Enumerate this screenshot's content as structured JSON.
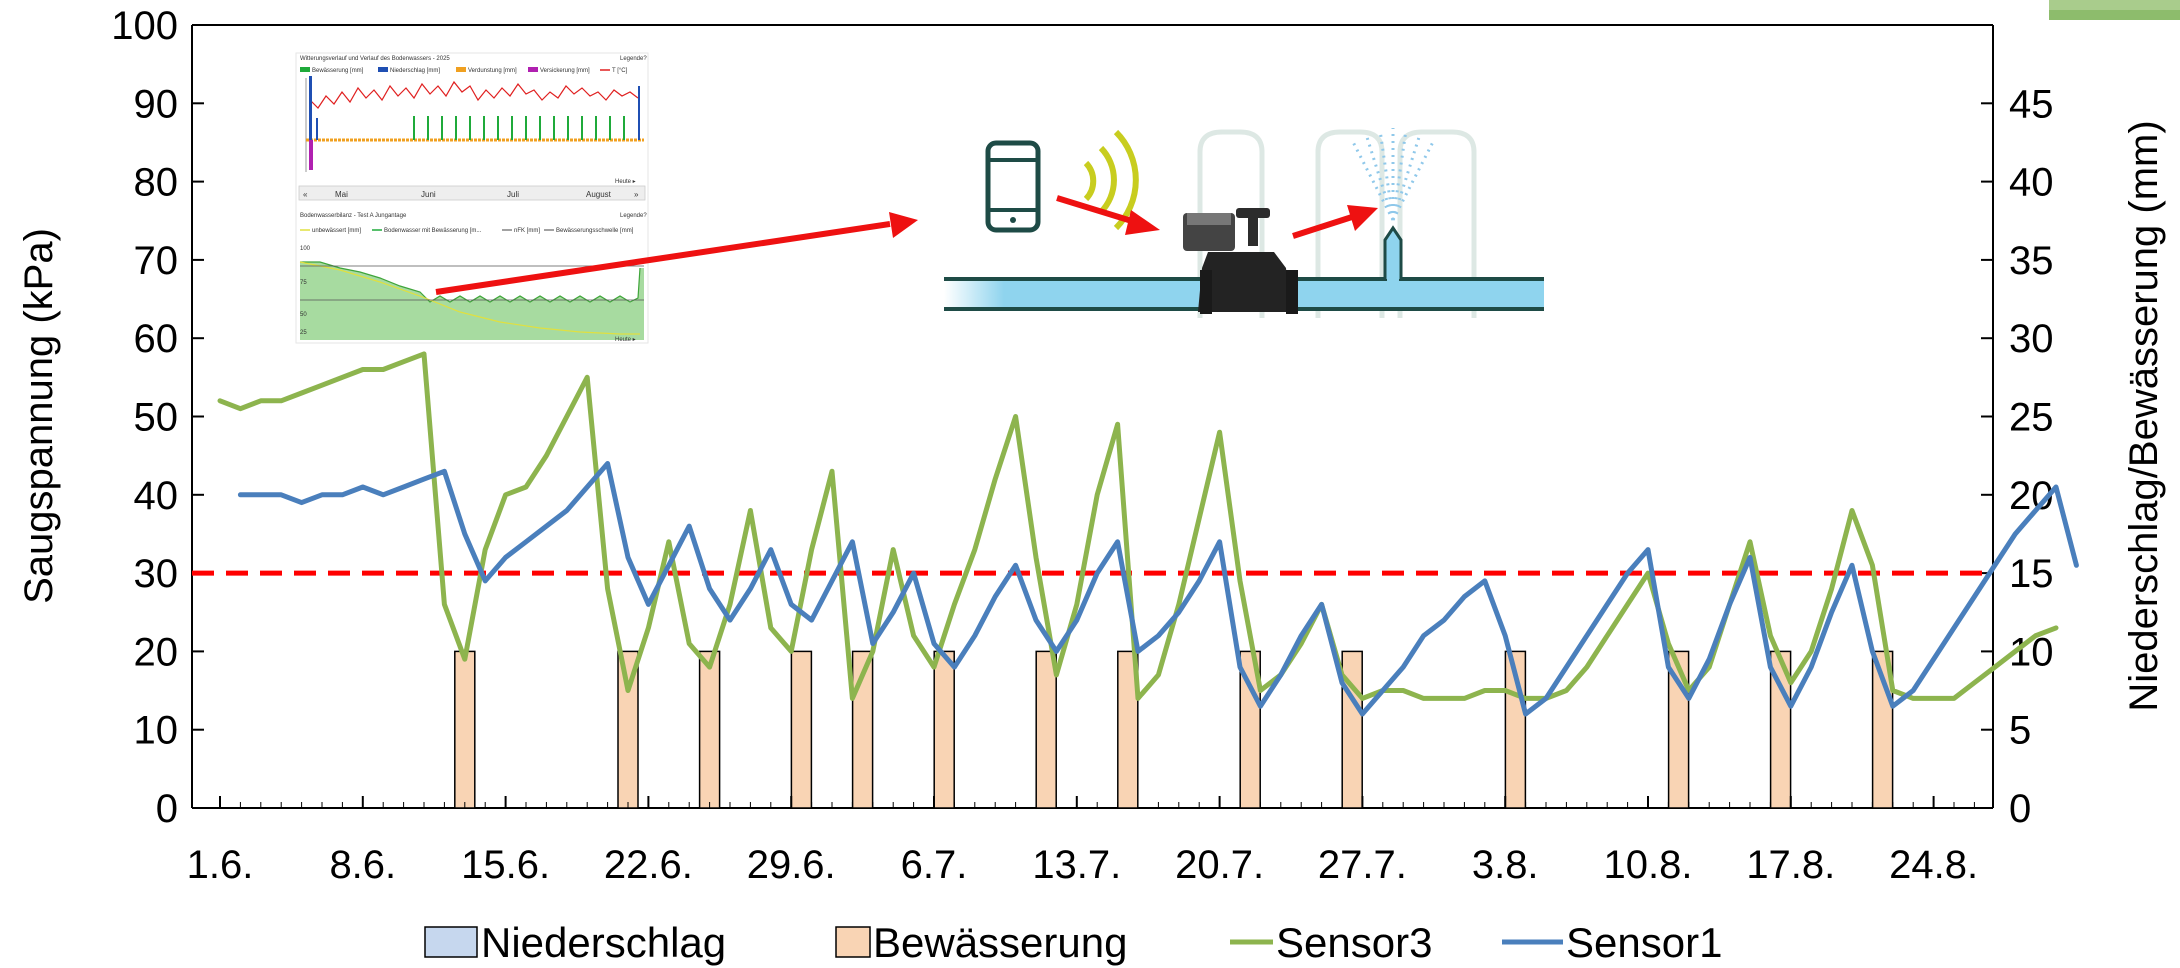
{
  "chart_data": {
    "type": "line",
    "xlabel": "",
    "ylabel": "Saugspannung (kPa)",
    "y2label": "Niederschlag/Bewässerung (mm)",
    "ylim": [
      0,
      100
    ],
    "y2lim": [
      0,
      50
    ],
    "yticks": [
      "0",
      "10",
      "20",
      "30",
      "40",
      "50",
      "60",
      "70",
      "80",
      "90",
      "100"
    ],
    "y2ticks": [
      "0",
      "5",
      "10",
      "15",
      "20",
      "25",
      "30",
      "35",
      "40",
      "45"
    ],
    "xlim": [
      0,
      92
    ],
    "xticks": [
      {
        "day": 0,
        "label": "1.6."
      },
      {
        "day": 7,
        "label": "8.6."
      },
      {
        "day": 14,
        "label": "15.6."
      },
      {
        "day": 21,
        "label": "22.6."
      },
      {
        "day": 28,
        "label": "29.6."
      },
      {
        "day": 35,
        "label": "6.7."
      },
      {
        "day": 42,
        "label": "13.7."
      },
      {
        "day": 49,
        "label": "20.7."
      },
      {
        "day": 56,
        "label": "27.7."
      },
      {
        "day": 63,
        "label": "3.8."
      },
      {
        "day": 70,
        "label": "10.8."
      },
      {
        "day": 77,
        "label": "17.8."
      },
      {
        "day": 84,
        "label": "24.8."
      }
    ],
    "threshold": {
      "value": 30,
      "color": "#ff0000"
    },
    "legend": {
      "position": "bottom",
      "items": [
        {
          "label": "Niederschlag",
          "kind": "box",
          "color": "#c6d7ee"
        },
        {
          "label": "Bewässerung",
          "kind": "box",
          "color": "#f9d4b4"
        },
        {
          "label": "Sensor3",
          "kind": "line",
          "color": "#8db44e"
        },
        {
          "label": "Sensor1",
          "kind": "line",
          "color": "#4a7fbc"
        }
      ]
    },
    "bars": {
      "name": "Bewässerung",
      "color": "#f9d4b4",
      "x": [
        12,
        20,
        24,
        28.5,
        31.5,
        35.5,
        40.5,
        44.5,
        50.5,
        55.5,
        63.5,
        71.5,
        76.5,
        81.5
      ],
      "values": [
        10,
        10,
        10,
        10,
        10,
        10,
        10,
        10,
        10,
        10,
        10,
        10,
        10,
        10
      ]
    },
    "series": [
      {
        "name": "Sensor3",
        "color": "#8db44e",
        "x": [
          0,
          1,
          2,
          3,
          4,
          5,
          6,
          7,
          8,
          9,
          10,
          11,
          12,
          13,
          14,
          15,
          16,
          17,
          18,
          19,
          20,
          21,
          22,
          23,
          24,
          25,
          26,
          27,
          28,
          29,
          30,
          31,
          32,
          33,
          34,
          35,
          36,
          37,
          38,
          39,
          40,
          41,
          42,
          43,
          44,
          45,
          46,
          47,
          48,
          49,
          50,
          51,
          52,
          53,
          54,
          55,
          56,
          57,
          58,
          59,
          60,
          61,
          62,
          63,
          64,
          65,
          66,
          67,
          68,
          69,
          70,
          71,
          72,
          73,
          74,
          75,
          76,
          77,
          78,
          79,
          80,
          81,
          82,
          83,
          84,
          85,
          86,
          87,
          88,
          89,
          90
        ],
        "values": [
          52,
          51,
          52,
          52,
          53,
          54,
          55,
          56,
          56,
          57,
          58,
          26,
          19,
          33,
          40,
          41,
          45,
          50,
          55,
          28,
          15,
          23,
          34,
          21,
          18,
          26,
          38,
          23,
          20,
          33,
          43,
          14,
          20,
          33,
          22,
          18,
          26,
          33,
          42,
          50,
          32,
          17,
          26,
          40,
          49,
          14,
          17,
          26,
          37,
          48,
          29,
          15,
          17,
          21,
          26,
          17,
          14,
          15,
          15,
          14,
          14,
          14,
          15,
          15,
          14,
          14,
          15,
          18,
          22,
          26,
          30,
          21,
          15,
          18,
          26,
          34,
          22,
          16,
          20,
          28,
          38,
          31,
          15,
          14,
          14,
          14,
          16,
          18,
          20,
          22,
          23
        ]
      },
      {
        "name": "Sensor1",
        "color": "#4a7fbc",
        "x": [
          1,
          2,
          3,
          4,
          5,
          6,
          7,
          8,
          9,
          10,
          11,
          12,
          13,
          14,
          15,
          16,
          17,
          18,
          19,
          20,
          21,
          22,
          23,
          24,
          25,
          26,
          27,
          28,
          29,
          30,
          31,
          32,
          33,
          34,
          35,
          36,
          37,
          38,
          39,
          40,
          41,
          42,
          43,
          44,
          45,
          46,
          47,
          48,
          49,
          50,
          51,
          52,
          53,
          54,
          55,
          56,
          57,
          58,
          59,
          60,
          61,
          62,
          63,
          64,
          65,
          66,
          67,
          68,
          69,
          70,
          71,
          72,
          73,
          74,
          75,
          76,
          77,
          78,
          79,
          80,
          81,
          82,
          83,
          84,
          85,
          86,
          87,
          88,
          89,
          90,
          91
        ],
        "values": [
          40,
          40,
          40,
          39,
          40,
          40,
          41,
          40,
          41,
          42,
          43,
          35,
          29,
          32,
          34,
          36,
          38,
          41,
          44,
          32,
          26,
          31,
          36,
          28,
          24,
          28,
          33,
          26,
          24,
          29,
          34,
          21,
          25,
          30,
          21,
          18,
          22,
          27,
          31,
          24,
          20,
          24,
          30,
          34,
          20,
          22,
          25,
          29,
          34,
          18,
          13,
          17,
          22,
          26,
          16,
          12,
          15,
          18,
          22,
          24,
          27,
          29,
          22,
          12,
          14,
          18,
          22,
          26,
          30,
          33,
          18,
          14,
          19,
          26,
          32,
          18,
          13,
          18,
          25,
          31,
          20,
          13,
          15,
          19,
          23,
          27,
          31,
          35,
          38,
          41,
          31
        ]
      }
    ],
    "inset_dashboard": {
      "top_title": "Witterungsverlauf und Verlauf des Bodenwassers - 2025",
      "top_link": "Legende?",
      "top_legend": [
        "Bewässerung [mm]",
        "Niederschlag [mm]",
        "Verdunstung [mm]",
        "Versickerung [mm]",
        "T [°C]"
      ],
      "months": [
        "Mai",
        "Juni",
        "Juli",
        "August"
      ],
      "nav_prev": "«",
      "nav_next": "»",
      "heute": "Heute ▸",
      "bottom_title": "Bodenwasserbilanz - Test A Jungantage",
      "bottom_link": "Legende?",
      "bottom_legend": [
        "unbewässert [mm]",
        "Bodenwasser mit Bewässerung [m...",
        "nFK [mm]",
        "Bewässerungsschwelle [mm]"
      ],
      "bottom_yticks": [
        "100",
        "75",
        "50",
        "25"
      ],
      "heute2": "Heute ▸"
    }
  }
}
